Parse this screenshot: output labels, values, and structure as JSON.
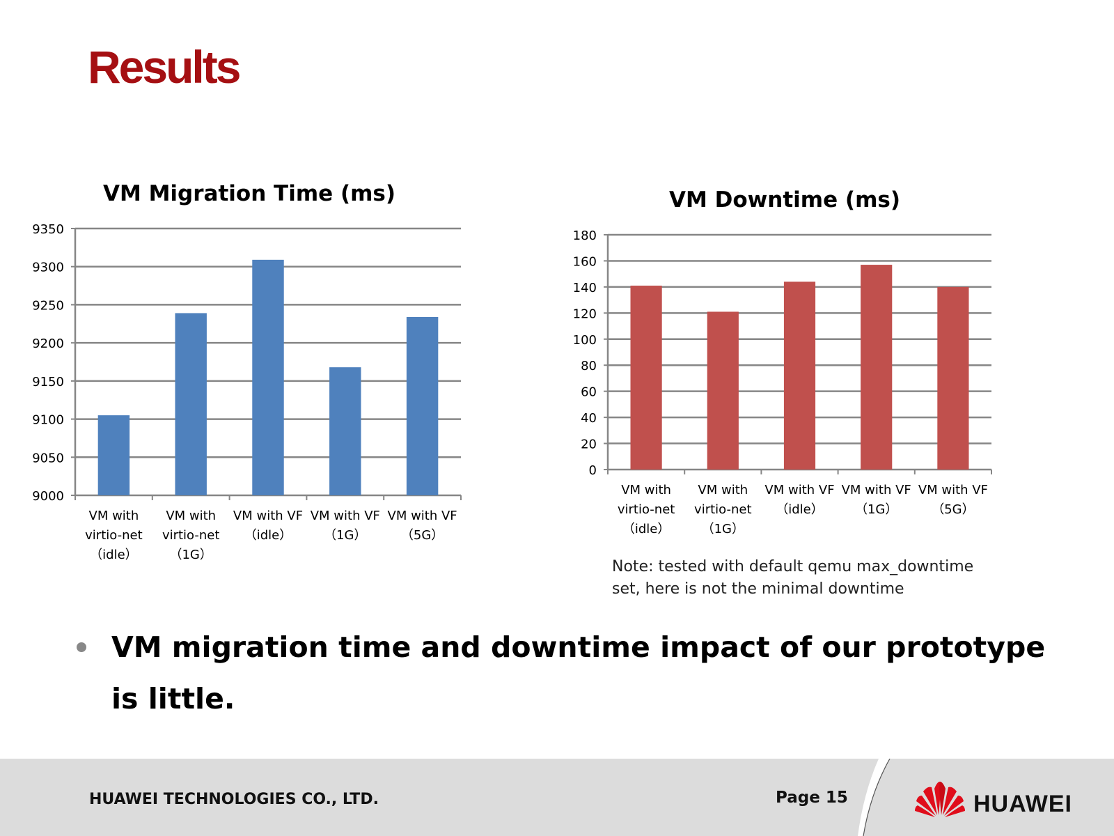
{
  "slide": {
    "title": "Results",
    "note": "Note: tested with default qemu max_downtime set, here is not the minimal downtime",
    "bullet": "VM migration time and downtime impact of our prototype is little.",
    "footer": {
      "company": "HUAWEI TECHNOLOGIES CO., LTD.",
      "page": "Page 15",
      "logo_text": "HUAWEI"
    }
  },
  "chart_data": [
    {
      "type": "bar",
      "title": "VM Migration Time (ms)",
      "categories": [
        "VM with\nvirtio-net\n（idle）",
        "VM with\nvirtio-net\n（1G）",
        "VM with VF\n（idle）",
        "VM with VF\n（1G）",
        "VM with VF\n（5G）"
      ],
      "values": [
        9105,
        9239,
        9309,
        9168,
        9234
      ],
      "ylim": [
        9000,
        9350
      ],
      "yticks": [
        9000,
        9050,
        9100,
        9150,
        9200,
        9250,
        9300,
        9350
      ],
      "grid": true,
      "color": "#4f81bd"
    },
    {
      "type": "bar",
      "title": "VM Downtime (ms)",
      "categories": [
        "VM with\nvirtio-net\n（idle）",
        "VM with\nvirtio-net\n（1G）",
        "VM with VF\n（idle）",
        "VM with VF\n（1G）",
        "VM with VF\n（5G）"
      ],
      "values": [
        141,
        121,
        144,
        157,
        140
      ],
      "ylim": [
        0,
        180
      ],
      "yticks": [
        0,
        20,
        40,
        60,
        80,
        100,
        120,
        140,
        160,
        180
      ],
      "grid": true,
      "color": "#c0504d"
    }
  ]
}
